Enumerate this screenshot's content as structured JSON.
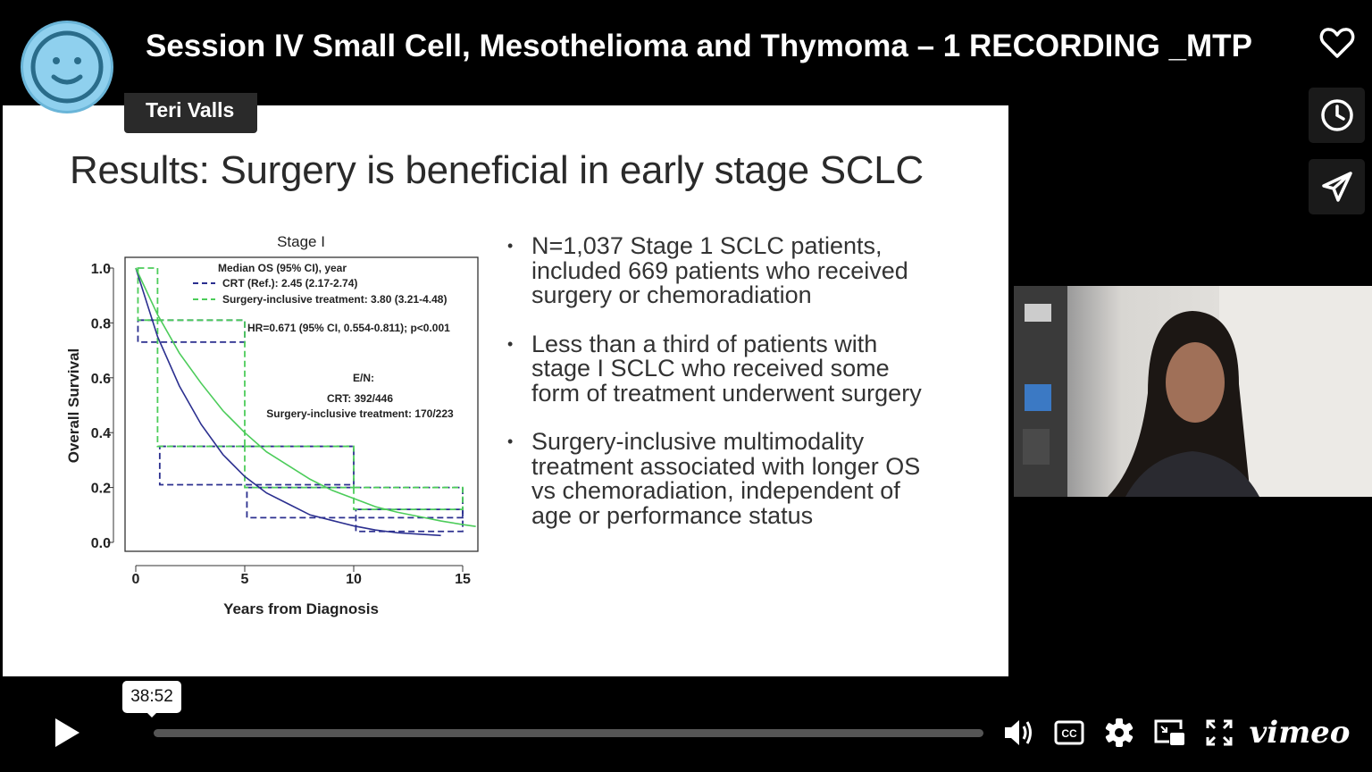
{
  "header": {
    "title": "Session IV Small Cell, Mesothelioma and Thymoma – 1 RECORDING _MTP",
    "byline": "Teri Valls",
    "avatar_color": "#8fd0ee"
  },
  "side_actions": [
    {
      "name": "like",
      "icon": "heart-icon"
    },
    {
      "name": "watch-later",
      "icon": "clock-icon"
    },
    {
      "name": "share",
      "icon": "send-icon"
    }
  ],
  "slide": {
    "title": "Results: Surgery is beneficial in early stage SCLC",
    "bullets": [
      "N=1,037 Stage 1 SCLC patients, included 669 patients who received surgery or chemoradiation",
      "Less than a third of patients with stage I SCLC who received some form of treatment underwent surgery",
      "Surgery-inclusive multimodality treatment associated with longer OS vs chemoradiation, independent of age or performance status"
    ]
  },
  "chart_data": {
    "type": "line",
    "title": "Stage I",
    "xlabel": "Years from Diagnosis",
    "ylabel": "Overall Survival",
    "xlim": [
      0,
      15.6
    ],
    "ylim": [
      0,
      1
    ],
    "xticks": [
      "0",
      "5",
      "10",
      "15"
    ],
    "yticks": [
      "0.0",
      "0.2",
      "0.4",
      "0.6",
      "0.8",
      "1.0"
    ],
    "legend_title": "Median OS (95% CI), year",
    "series": [
      {
        "name": "CRT (Ref.): 2.45 (2.17-2.74)",
        "color": "#2b2f8f",
        "x": [
          0,
          1,
          2,
          3,
          4,
          5,
          6,
          7,
          8,
          9,
          10,
          11,
          12,
          13,
          14
        ],
        "values": [
          1.0,
          0.75,
          0.57,
          0.43,
          0.32,
          0.24,
          0.18,
          0.14,
          0.1,
          0.08,
          0.06,
          0.045,
          0.035,
          0.03,
          0.025
        ]
      },
      {
        "name": "Surgery-inclusive treatment: 3.80 (3.21-4.48)",
        "color": "#4ccc5a",
        "x": [
          0,
          1,
          2,
          3,
          4,
          5,
          6,
          7,
          8,
          9,
          10,
          11,
          12,
          13,
          14,
          15,
          15.6
        ],
        "values": [
          1.0,
          0.83,
          0.69,
          0.58,
          0.48,
          0.4,
          0.33,
          0.28,
          0.23,
          0.19,
          0.16,
          0.13,
          0.11,
          0.094,
          0.078,
          0.065,
          0.058
        ]
      }
    ],
    "ci_boxes": [
      {
        "series": 0,
        "x": [
          0.1,
          5
        ],
        "y": [
          0.73,
          0.81
        ]
      },
      {
        "series": 0,
        "x": [
          1.1,
          10
        ],
        "y": [
          0.21,
          0.35
        ]
      },
      {
        "series": 0,
        "x": [
          5.1,
          15
        ],
        "y": [
          0.09,
          0.2
        ]
      },
      {
        "series": 0,
        "x": [
          10.1,
          15
        ],
        "y": [
          0.04,
          0.12
        ]
      },
      {
        "series": 1,
        "x": [
          0.1,
          1
        ],
        "y": [
          0.81,
          1.0
        ]
      },
      {
        "series": 1,
        "x": [
          1,
          5
        ],
        "y": [
          0.35,
          0.81
        ]
      },
      {
        "series": 1,
        "x": [
          5,
          10
        ],
        "y": [
          0.2,
          0.35
        ]
      },
      {
        "series": 1,
        "x": [
          10,
          15
        ],
        "y": [
          0.12,
          0.2
        ]
      }
    ],
    "annotations": [
      "HR=0.671 (95% CI, 0.554-0.811); p<0.001",
      "E/N:",
      "CRT: 392/446",
      "Surgery-inclusive treatment: 170/223"
    ]
  },
  "player": {
    "current_time": "38:52",
    "progress_fraction": 0.0,
    "brand": "vimeo",
    "controls": [
      "play-icon",
      "volume-icon",
      "cc-icon",
      "settings-icon",
      "pip-icon",
      "fullscreen-icon"
    ]
  }
}
